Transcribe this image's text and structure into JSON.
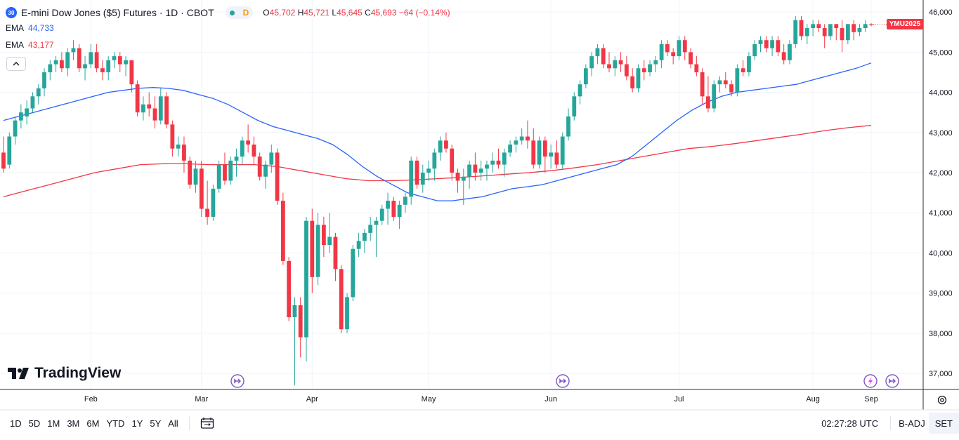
{
  "header": {
    "badge": "30",
    "title": "E-mini Dow Jones ($5) Futures · 1D · CBOT",
    "status_letter": "D",
    "ohlc": {
      "o_label": "O",
      "o": "45,702",
      "h_label": "H",
      "h": "45,721",
      "l_label": "L",
      "l": "45,645",
      "c_label": "C",
      "c": "45,693",
      "change": "−64 (−0.14%)"
    }
  },
  "indicators": [
    {
      "label": "EMA",
      "value": "44,733",
      "color": "#2962ff"
    },
    {
      "label": "EMA",
      "value": "43,177",
      "color": "#f23645"
    }
  ],
  "symbol_label": "YMU2025",
  "logo_text": "TradingView",
  "colors": {
    "up": "#26a69a",
    "up_body": "#4caf7c",
    "down": "#f23645",
    "ema_fast": "#2962ff",
    "ema_slow": "#f23645",
    "accent": "#7e57c2"
  },
  "icons": [
    "chevron-up-icon",
    "event-arrow-icon",
    "event-arrow-icon",
    "lightning-icon",
    "event-arrow-icon",
    "calendar-range-icon",
    "gear-icon"
  ],
  "toolbar": {
    "ranges": [
      "1D",
      "5D",
      "1M",
      "3M",
      "6M",
      "YTD",
      "1Y",
      "5Y",
      "All"
    ],
    "time": "02:27:28 UTC",
    "adj": "B-ADJ",
    "session": "SET"
  },
  "chart_data": {
    "type": "candlestick",
    "x_tick_labels": [
      "Feb",
      "Mar",
      "Apr",
      "May",
      "Jun",
      "Jul",
      "Aug",
      "Sep"
    ],
    "y_ticks": [
      37000,
      38000,
      39000,
      40000,
      41000,
      42000,
      43000,
      44000,
      45000,
      46000
    ],
    "y_tick_labels": [
      "37,000",
      "38,000",
      "39,000",
      "40,000",
      "41,000",
      "42,000",
      "43,000",
      "44,000",
      "45,000",
      "46,000"
    ],
    "ylim": [
      36600,
      46300
    ],
    "grid": true,
    "last_price": 45693,
    "candles": [
      [
        42500,
        42900,
        42000,
        42100
      ],
      [
        42200,
        43000,
        42100,
        42900
      ],
      [
        42900,
        43400,
        42700,
        43300
      ],
      [
        43300,
        43700,
        43100,
        43500
      ],
      [
        43400,
        43800,
        43200,
        43600
      ],
      [
        43600,
        44000,
        43500,
        43900
      ],
      [
        43900,
        44200,
        43700,
        44100
      ],
      [
        44100,
        44600,
        43900,
        44500
      ],
      [
        44500,
        44800,
        44300,
        44700
      ],
      [
        44700,
        44900,
        44500,
        44800
      ],
      [
        44800,
        45000,
        44500,
        44600
      ],
      [
        44600,
        45100,
        44400,
        45000
      ],
      [
        45000,
        45300,
        44800,
        45100
      ],
      [
        45100,
        45200,
        44500,
        44600
      ],
      [
        44600,
        44900,
        44300,
        44700
      ],
      [
        44700,
        45200,
        44600,
        45000
      ],
      [
        45000,
        45200,
        44500,
        44600
      ],
      [
        44600,
        44800,
        44300,
        44500
      ],
      [
        44500,
        44900,
        44300,
        44800
      ],
      [
        44800,
        45000,
        44600,
        44900
      ],
      [
        44900,
        45000,
        44500,
        44700
      ],
      [
        44700,
        44900,
        44400,
        44800
      ],
      [
        44800,
        44800,
        44000,
        44200
      ],
      [
        44200,
        44300,
        43400,
        43500
      ],
      [
        43500,
        43900,
        43300,
        43700
      ],
      [
        43700,
        44000,
        43400,
        43600
      ],
      [
        43600,
        43900,
        43100,
        43300
      ],
      [
        43300,
        44100,
        43200,
        43900
      ],
      [
        43900,
        44000,
        43100,
        43200
      ],
      [
        43200,
        43300,
        42400,
        42600
      ],
      [
        42600,
        42900,
        42400,
        42700
      ],
      [
        42700,
        42900,
        42000,
        42300
      ],
      [
        42300,
        42400,
        41600,
        41700
      ],
      [
        41700,
        42300,
        41500,
        42100
      ],
      [
        42100,
        42300,
        40900,
        41100
      ],
      [
        41100,
        41800,
        40700,
        40900
      ],
      [
        40900,
        41700,
        40800,
        41600
      ],
      [
        41600,
        42300,
        41500,
        42200
      ],
      [
        42200,
        42500,
        41700,
        41800
      ],
      [
        41800,
        42400,
        41700,
        42300
      ],
      [
        42300,
        42600,
        41900,
        42400
      ],
      [
        42400,
        42900,
        42200,
        42800
      ],
      [
        42800,
        43200,
        42500,
        42700
      ],
      [
        42700,
        42900,
        42200,
        42400
      ],
      [
        42400,
        42500,
        41800,
        41900
      ],
      [
        41900,
        42300,
        41600,
        42200
      ],
      [
        42200,
        42700,
        42000,
        42500
      ],
      [
        42500,
        42600,
        41200,
        41300
      ],
      [
        41300,
        41500,
        39700,
        39800
      ],
      [
        39800,
        39900,
        38300,
        38400
      ],
      [
        38400,
        38900,
        36700,
        38700
      ],
      [
        38700,
        38900,
        37400,
        37900
      ],
      [
        37900,
        40900,
        37300,
        40800
      ],
      [
        40800,
        41100,
        39000,
        39400
      ],
      [
        39400,
        41000,
        39200,
        40700
      ],
      [
        40700,
        40900,
        39900,
        40200
      ],
      [
        40200,
        41000,
        40000,
        40400
      ],
      [
        40400,
        40500,
        39300,
        39600
      ],
      [
        39600,
        39700,
        38000,
        38100
      ],
      [
        38100,
        39000,
        38000,
        38900
      ],
      [
        38900,
        40200,
        38800,
        40100
      ],
      [
        40100,
        40500,
        39900,
        40300
      ],
      [
        40300,
        40600,
        40000,
        40500
      ],
      [
        40500,
        40900,
        40300,
        40700
      ],
      [
        40700,
        40900,
        39900,
        40800
      ],
      [
        40800,
        41200,
        40700,
        41100
      ],
      [
        41100,
        41500,
        40700,
        41300
      ],
      [
        41300,
        41400,
        40800,
        40900
      ],
      [
        40900,
        41300,
        40600,
        41200
      ],
      [
        41200,
        41500,
        41000,
        41400
      ],
      [
        41400,
        42400,
        41200,
        42300
      ],
      [
        42300,
        42400,
        41600,
        41700
      ],
      [
        41700,
        42200,
        41500,
        42000
      ],
      [
        42000,
        42300,
        41800,
        42100
      ],
      [
        42100,
        42600,
        41800,
        42500
      ],
      [
        42500,
        42900,
        42300,
        42800
      ],
      [
        42800,
        43000,
        42500,
        42600
      ],
      [
        42600,
        42700,
        41800,
        42000
      ],
      [
        42000,
        42100,
        41500,
        41800
      ],
      [
        41800,
        42100,
        41200,
        41900
      ],
      [
        41900,
        42300,
        41600,
        42200
      ],
      [
        42200,
        42500,
        41800,
        42000
      ],
      [
        42000,
        42300,
        41800,
        42100
      ],
      [
        42100,
        42300,
        41800,
        42200
      ],
      [
        42200,
        42500,
        42000,
        42300
      ],
      [
        42300,
        42600,
        42100,
        42200
      ],
      [
        42200,
        42600,
        41900,
        42500
      ],
      [
        42500,
        42800,
        42400,
        42700
      ],
      [
        42700,
        42900,
        42500,
        42800
      ],
      [
        42800,
        43100,
        42700,
        42900
      ],
      [
        42900,
        43300,
        42600,
        42800
      ],
      [
        42800,
        43100,
        42100,
        42200
      ],
      [
        42200,
        42900,
        42100,
        42800
      ],
      [
        42800,
        42900,
        42000,
        42400
      ],
      [
        42400,
        42700,
        42100,
        42500
      ],
      [
        42500,
        42800,
        42100,
        42200
      ],
      [
        42200,
        43000,
        42100,
        42900
      ],
      [
        42900,
        43600,
        42800,
        43400
      ],
      [
        43400,
        44000,
        43300,
        43900
      ],
      [
        43900,
        44300,
        43700,
        44200
      ],
      [
        44200,
        44700,
        44100,
        44600
      ],
      [
        44600,
        45000,
        44400,
        44900
      ],
      [
        44900,
        45200,
        44700,
        45100
      ],
      [
        45100,
        45200,
        44600,
        44700
      ],
      [
        44700,
        45000,
        44500,
        44600
      ],
      [
        44600,
        44900,
        44400,
        44800
      ],
      [
        44800,
        45000,
        44500,
        44700
      ],
      [
        44700,
        44900,
        44300,
        44400
      ],
      [
        44400,
        44600,
        44000,
        44100
      ],
      [
        44100,
        44700,
        44000,
        44600
      ],
      [
        44600,
        44800,
        44300,
        44500
      ],
      [
        44500,
        44800,
        44400,
        44700
      ],
      [
        44700,
        44900,
        44500,
        44800
      ],
      [
        44800,
        45300,
        44600,
        45200
      ],
      [
        45200,
        45300,
        44900,
        45000
      ],
      [
        45000,
        45100,
        44700,
        44900
      ],
      [
        44900,
        45400,
        44800,
        45300
      ],
      [
        45300,
        45400,
        44800,
        45000
      ],
      [
        45000,
        45100,
        44600,
        44700
      ],
      [
        44700,
        44900,
        44400,
        44500
      ],
      [
        44500,
        44600,
        43700,
        43900
      ],
      [
        43900,
        44400,
        43500,
        43600
      ],
      [
        43600,
        44300,
        43500,
        44200
      ],
      [
        44200,
        44400,
        44000,
        44300
      ],
      [
        44300,
        44500,
        44100,
        44200
      ],
      [
        44200,
        44300,
        43900,
        44000
      ],
      [
        44000,
        44700,
        43900,
        44600
      ],
      [
        44600,
        44800,
        44400,
        44500
      ],
      [
        44500,
        45000,
        44400,
        44900
      ],
      [
        44900,
        45300,
        44800,
        45200
      ],
      [
        45200,
        45400,
        45000,
        45300
      ],
      [
        45300,
        45400,
        45000,
        45100
      ],
      [
        45100,
        45400,
        44900,
        45300
      ],
      [
        45300,
        45400,
        44900,
        45000
      ],
      [
        45000,
        45200,
        44700,
        44800
      ],
      [
        44800,
        45300,
        44700,
        45200
      ],
      [
        45200,
        45900,
        45100,
        45800
      ],
      [
        45800,
        45900,
        45300,
        45400
      ],
      [
        45400,
        45700,
        45200,
        45600
      ],
      [
        45600,
        45800,
        45400,
        45700
      ],
      [
        45700,
        45800,
        45500,
        45600
      ],
      [
        45600,
        45700,
        45100,
        45400
      ],
      [
        45400,
        45700,
        45300,
        45700
      ],
      [
        45700,
        45700,
        45300,
        45600
      ],
      [
        45600,
        45800,
        45000,
        45300
      ],
      [
        45300,
        45700,
        45200,
        45700
      ],
      [
        45700,
        45800,
        45300,
        45500
      ],
      [
        45500,
        45700,
        45400,
        45600
      ],
      [
        45600,
        45800,
        45500,
        45700
      ],
      [
        45702,
        45721,
        45645,
        45693
      ]
    ],
    "ema_fast": [
      43300,
      43400,
      43500,
      43600,
      43700,
      43800,
      43900,
      44000,
      44050,
      44100,
      44120,
      44100,
      44050,
      43950,
      43850,
      43700,
      43500,
      43300,
      43150,
      43050,
      42950,
      42850,
      42700,
      42450,
      42150,
      41900,
      41700,
      41500,
      41400,
      41300,
      41300,
      41350,
      41400,
      41500,
      41600,
      41650,
      41700,
      41800,
      41900,
      42000,
      42100,
      42200,
      42400,
      42700,
      43000,
      43300,
      43550,
      43750,
      43900,
      44000,
      44050,
      44100,
      44150,
      44200,
      44300,
      44400,
      44500,
      44600,
      44733
    ],
    "ema_slow": [
      41400,
      41550,
      41700,
      41850,
      42000,
      42100,
      42200,
      42220,
      42220,
      42200,
      42200,
      42200,
      42150,
      42050,
      41950,
      41850,
      41800,
      41800,
      41820,
      41850,
      41880,
      41920,
      41960,
      42000,
      42050,
      42120,
      42200,
      42300,
      42400,
      42500,
      42600,
      42650,
      42720,
      42800,
      42880,
      42960,
      43050,
      43120,
      43177
    ],
    "ema_fast_label": "EMA",
    "ema_slow_label": "EMA"
  }
}
